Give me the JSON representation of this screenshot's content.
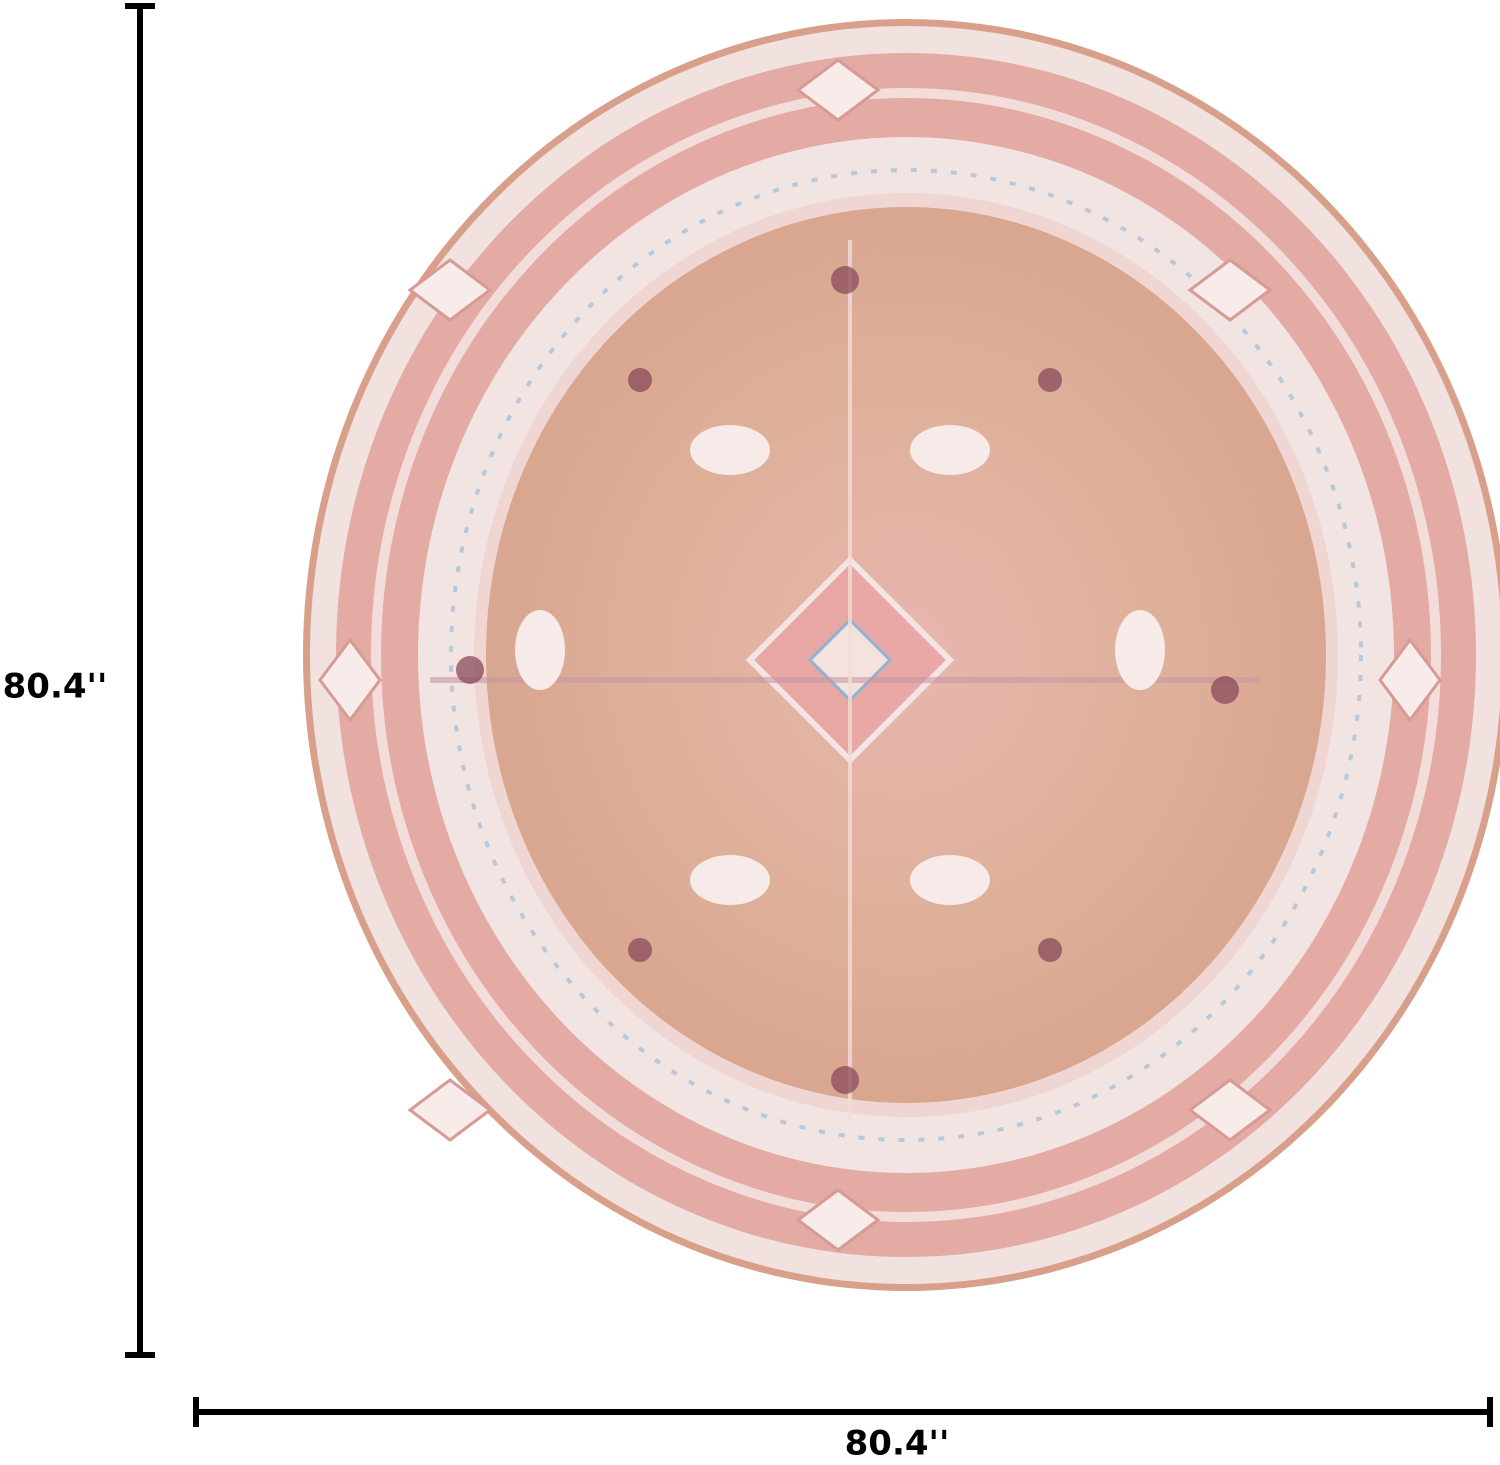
{
  "dimensions": {
    "height": {
      "label": "80.4''"
    },
    "width": {
      "label": "80.4''"
    }
  }
}
